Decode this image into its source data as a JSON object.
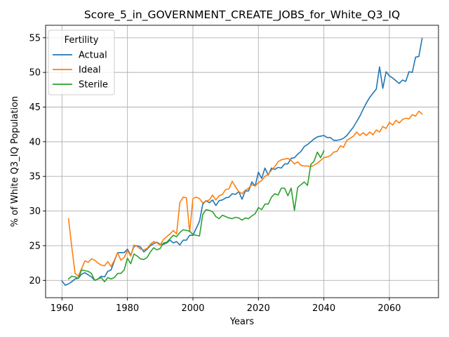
{
  "chart_data": {
    "type": "line",
    "title": "Score_5_in_GOVERNMENT_CREATE_JOBS_for_White_Q3_IQ",
    "xlabel": "Years",
    "ylabel": "% of White Q3_IQ Population",
    "xlim": [
      1955,
      2075
    ],
    "ylim": [
      17.5,
      56.8
    ],
    "xticks": [
      1960,
      1980,
      2000,
      2020,
      2040,
      2060
    ],
    "yticks": [
      20,
      25,
      30,
      35,
      40,
      45,
      50,
      55
    ],
    "grid": true,
    "legend": {
      "title": "Fertility",
      "placement": "top-left"
    },
    "series": [
      {
        "name": "Actual",
        "color": "#1f77b4",
        "x": [
          1960,
          1961,
          1962,
          1963,
          1964,
          1965,
          1966,
          1967,
          1968,
          1969,
          1970,
          1971,
          1972,
          1973,
          1974,
          1975,
          1976,
          1977,
          1978,
          1979,
          1980,
          1981,
          1982,
          1983,
          1984,
          1985,
          1986,
          1987,
          1988,
          1989,
          1990,
          1991,
          1992,
          1993,
          1994,
          1995,
          1996,
          1997,
          1998,
          1999,
          2000,
          2001,
          2002,
          2003,
          2004,
          2005,
          2006,
          2007,
          2008,
          2009,
          2010,
          2011,
          2012,
          2013,
          2014,
          2015,
          2016,
          2017,
          2018,
          2019,
          2020,
          2021,
          2022,
          2023,
          2024,
          2025,
          2026,
          2027,
          2028,
          2029,
          2030,
          2031,
          2032,
          2033,
          2034,
          2035,
          2036,
          2037,
          2038,
          2039,
          2040,
          2041,
          2042,
          2043,
          2044,
          2045,
          2046,
          2047,
          2048,
          2049,
          2050,
          2051,
          2052,
          2053,
          2054,
          2055,
          2056,
          2057,
          2058,
          2059,
          2060,
          2061,
          2062,
          2063,
          2064,
          2065,
          2066,
          2067,
          2068,
          2069,
          2070
        ],
        "values": [
          19.9,
          19.3,
          19.5,
          19.8,
          20.2,
          20.3,
          20.9,
          21.1,
          20.8,
          20.5,
          20.0,
          20.2,
          20.6,
          20.5,
          21.3,
          21.5,
          22.8,
          24.0,
          24.0,
          24.0,
          24.5,
          23.6,
          24.9,
          25.0,
          24.8,
          24.1,
          24.5,
          25.0,
          25.3,
          25.5,
          25.2,
          25.2,
          25.4,
          25.8,
          25.4,
          25.6,
          25.1,
          25.8,
          25.8,
          26.5,
          26.5,
          27.5,
          28.5,
          31.0,
          31.5,
          31.2,
          31.6,
          30.8,
          31.5,
          31.6,
          31.9,
          32.0,
          32.5,
          32.4,
          32.8,
          31.7,
          32.9,
          32.9,
          34.2,
          33.6,
          35.6,
          34.7,
          36.2,
          35.2,
          36.2,
          36.0,
          36.3,
          36.2,
          36.8,
          36.8,
          37.6,
          37.7,
          38.2,
          38.6,
          39.3,
          39.6,
          40.0,
          40.4,
          40.7,
          40.8,
          40.9,
          40.6,
          40.6,
          40.2,
          40.2,
          40.3,
          40.5,
          40.9,
          41.5,
          42.1,
          42.9,
          43.7,
          44.7,
          45.6,
          46.4,
          47.0,
          47.6,
          50.8,
          47.7,
          50.1,
          49.5,
          49.2,
          48.8,
          48.4,
          48.9,
          48.7,
          50.1,
          50.0,
          52.2,
          52.3,
          54.9
        ]
      },
      {
        "name": "Ideal",
        "color": "#ff7f0e",
        "x": [
          1962,
          1963,
          1964,
          1965,
          1966,
          1967,
          1968,
          1969,
          1970,
          1971,
          1972,
          1973,
          1974,
          1975,
          1976,
          1977,
          1978,
          1979,
          1980,
          1981,
          1982,
          1983,
          1984,
          1985,
          1986,
          1987,
          1988,
          1989,
          1990,
          1991,
          1992,
          1993,
          1994,
          1995,
          1996,
          1997,
          1998,
          1999,
          2000,
          2001,
          2002,
          2003,
          2004,
          2005,
          2006,
          2007,
          2008,
          2009,
          2010,
          2011,
          2012,
          2013,
          2014,
          2015,
          2016,
          2017,
          2018,
          2019,
          2020,
          2021,
          2022,
          2023,
          2024,
          2025,
          2026,
          2027,
          2028,
          2029,
          2030,
          2031,
          2032,
          2033,
          2034,
          2035,
          2036,
          2037,
          2038,
          2039,
          2040,
          2041,
          2042,
          2043,
          2044,
          2045,
          2046,
          2047,
          2048,
          2049,
          2050,
          2051,
          2052,
          2053,
          2054,
          2055,
          2056,
          2057,
          2058,
          2059,
          2060,
          2061,
          2062,
          2063,
          2064,
          2065,
          2066,
          2067,
          2068,
          2069,
          2070
        ],
        "values": [
          28.9,
          24.8,
          21.0,
          20.6,
          21.7,
          22.8,
          22.6,
          23.1,
          22.9,
          22.5,
          22.2,
          22.1,
          22.7,
          22.0,
          22.9,
          24.0,
          22.9,
          23.3,
          24.3,
          23.5,
          25.1,
          24.9,
          24.5,
          24.4,
          24.6,
          25.2,
          25.6,
          25.4,
          25.1,
          25.9,
          26.3,
          26.7,
          27.2,
          26.7,
          31.2,
          32.0,
          31.9,
          27.0,
          31.8,
          32.0,
          31.8,
          31.2,
          31.4,
          31.6,
          32.3,
          31.6,
          32.2,
          32.4,
          33.1,
          33.2,
          34.3,
          33.5,
          32.8,
          32.5,
          33.0,
          33.3,
          33.8,
          33.6,
          34.1,
          34.4,
          35.0,
          35.3,
          35.9,
          36.4,
          37.1,
          37.4,
          37.5,
          37.6,
          37.3,
          36.8,
          37.1,
          36.6,
          36.5,
          36.5,
          36.4,
          36.6,
          36.9,
          37.3,
          37.7,
          37.8,
          38.0,
          38.5,
          38.6,
          39.4,
          39.2,
          40.2,
          40.5,
          40.8,
          41.4,
          40.9,
          41.3,
          40.9,
          41.4,
          41.0,
          41.7,
          41.4,
          42.2,
          41.9,
          42.8,
          42.4,
          43.1,
          42.7,
          43.2,
          43.4,
          43.3,
          43.9,
          43.7,
          44.4,
          44.0
        ]
      },
      {
        "name": "Sterile",
        "color": "#2ca02c",
        "x": [
          1962,
          1963,
          1964,
          1965,
          1966,
          1967,
          1968,
          1969,
          1970,
          1971,
          1972,
          1973,
          1974,
          1975,
          1976,
          1977,
          1978,
          1979,
          1980,
          1981,
          1982,
          1983,
          1984,
          1985,
          1986,
          1987,
          1988,
          1989,
          1990,
          1991,
          1992,
          1993,
          1994,
          1995,
          1996,
          1997,
          1998,
          1999,
          2000,
          2001,
          2002,
          2003,
          2004,
          2005,
          2006,
          2007,
          2008,
          2009,
          2010,
          2011,
          2012,
          2013,
          2014,
          2015,
          2016,
          2017,
          2018,
          2019,
          2020,
          2021,
          2022,
          2023,
          2024,
          2025,
          2026,
          2027,
          2028,
          2029,
          2030,
          2031,
          2032,
          2033,
          2034,
          2035,
          2036,
          2037,
          2038,
          2039,
          2040
        ],
        "values": [
          20.2,
          20.6,
          20.5,
          20.3,
          21.5,
          21.4,
          21.3,
          21.0,
          20.0,
          20.2,
          20.4,
          19.8,
          20.4,
          20.2,
          20.4,
          21.0,
          21.0,
          21.5,
          23.2,
          22.4,
          23.8,
          23.5,
          23.1,
          23.0,
          23.3,
          24.1,
          24.7,
          24.4,
          24.6,
          25.4,
          25.5,
          26.0,
          26.5,
          26.3,
          26.9,
          27.3,
          27.2,
          27.1,
          26.6,
          26.5,
          26.4,
          29.5,
          30.2,
          30.1,
          29.9,
          29.2,
          28.9,
          29.4,
          29.2,
          29.0,
          28.9,
          29.1,
          29.0,
          28.7,
          29.0,
          28.9,
          29.3,
          29.6,
          30.5,
          30.2,
          31.0,
          31.0,
          32.0,
          32.5,
          32.3,
          33.3,
          33.3,
          32.2,
          33.3,
          30.1,
          33.4,
          33.8,
          34.2,
          33.7,
          36.7,
          37.2,
          38.5,
          37.7,
          38.7
        ]
      }
    ]
  }
}
